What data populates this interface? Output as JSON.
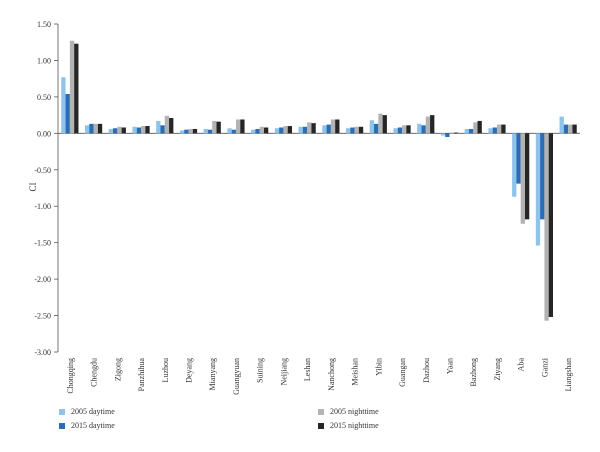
{
  "chart_data": {
    "type": "bar",
    "title": "",
    "xlabel": "",
    "ylabel": "CI",
    "ylim": [
      -3.0,
      1.5
    ],
    "yticks": [
      "1.50",
      "1.00",
      "0.50",
      "0.00",
      "-0.50",
      "-1.00",
      "-1.50",
      "-2.00",
      "-2.50",
      "-3.00"
    ],
    "grid": false,
    "legend_position": "bottom",
    "categories": [
      "Chongqing",
      "Chengdu",
      "Zigong",
      "Panzhihua",
      "Luzhou",
      "Deyang",
      "Mianyang",
      "Guangyuan",
      "Suining",
      "Neijiang",
      "Leshan",
      "Nanchong",
      "Meishan",
      "Yibin",
      "Guangan",
      "Dazhou",
      "Yaan",
      "Bazhong",
      "Ziyang",
      "Aba",
      "Ganzi",
      "Liangshan"
    ],
    "series": [
      {
        "name": "2005 daytime",
        "color": "#8fc4ea",
        "values": [
          0.77,
          0.11,
          0.06,
          0.09,
          0.17,
          0.04,
          0.06,
          0.07,
          0.05,
          0.07,
          0.09,
          0.11,
          0.07,
          0.18,
          0.07,
          0.13,
          -0.03,
          0.06,
          0.07,
          -0.87,
          -1.54,
          0.23
        ]
      },
      {
        "name": "2015 daytime",
        "color": "#2a6db5",
        "values": [
          0.54,
          0.13,
          0.07,
          0.08,
          0.11,
          0.05,
          0.05,
          0.05,
          0.06,
          0.08,
          0.09,
          0.12,
          0.08,
          0.13,
          0.08,
          0.11,
          -0.05,
          0.06,
          0.08,
          -0.69,
          -1.18,
          0.12
        ]
      },
      {
        "name": "2005 nighttime",
        "color": "#b3b3b3",
        "values": [
          1.27,
          0.13,
          0.09,
          0.1,
          0.24,
          0.06,
          0.17,
          0.19,
          0.09,
          0.1,
          0.15,
          0.19,
          0.09,
          0.27,
          0.11,
          0.23,
          0.01,
          0.15,
          0.12,
          -1.24,
          -2.57,
          0.12
        ]
      },
      {
        "name": "2015 nighttime",
        "color": "#262626",
        "values": [
          1.23,
          0.13,
          0.08,
          0.1,
          0.21,
          0.06,
          0.16,
          0.19,
          0.08,
          0.1,
          0.14,
          0.19,
          0.09,
          0.25,
          0.11,
          0.25,
          0.01,
          0.17,
          0.12,
          -1.18,
          -2.52,
          0.12
        ]
      }
    ]
  }
}
